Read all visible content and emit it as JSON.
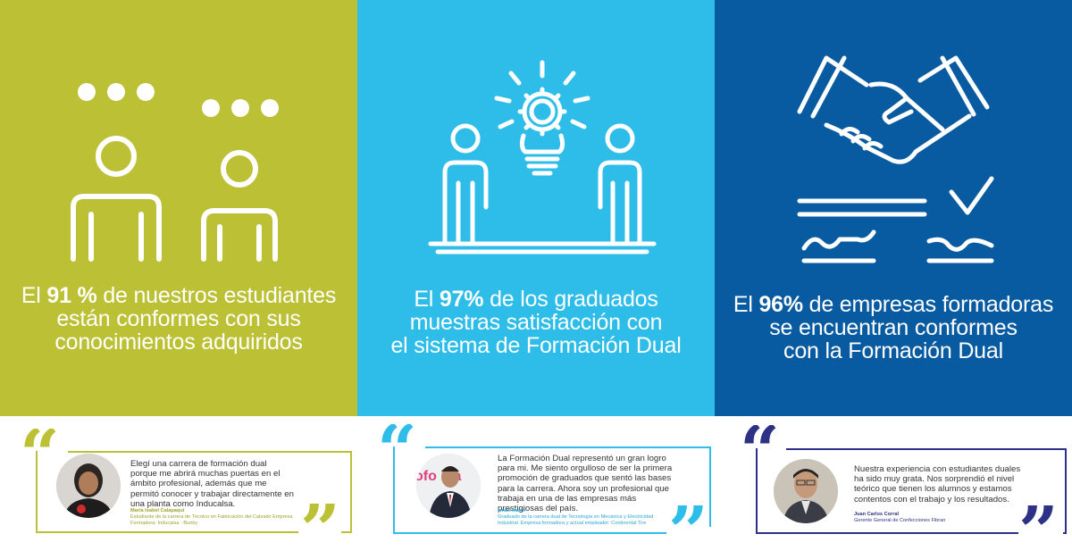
{
  "colors": {
    "green": "#bbc034",
    "light_blue": "#2ebde9",
    "dark_blue": "#095ba1",
    "navy": "#2e3286"
  },
  "stats": [
    {
      "icon": "two-people-talking-icon",
      "line1_pre": "El ",
      "line1_bold": "91 %",
      "line1_post": " de nuestros estudiantes",
      "line2": "están conformes con sus",
      "line3": "conocimientos adquiridos"
    },
    {
      "icon": "people-lightbulb-gear-icon",
      "line1_pre": "El ",
      "line1_bold": "97%",
      "line1_post": " de los graduados",
      "line2": "muestras satisfacción con",
      "line3": "el sistema de Formación Dual"
    },
    {
      "icon": "handshake-contract-icon",
      "line1_pre": "El ",
      "line1_bold": "96%",
      "line1_post": " de empresas formadoras",
      "line2": "se encuentran conformes",
      "line3": "con la Formación Dual"
    }
  ],
  "testimonials": [
    {
      "text": "Elegí una carrera de formación dual porque me abrirá muchas puertas en el ámbito profesional, además que me permitó conocer y trabajar directamente en una planta como Inducalsa.",
      "name": "María Isabel Calapaquí",
      "role": "Estudiante de la carrera de Técnico en Fabricación del Calzado Empresa Formadora: Inducalsa - Bunky"
    },
    {
      "text": "La Formación Dual representó un gran logro para mi. Me siento orgulloso de ser la primera promoción de graduados que sentó las bases para la carrera. Ahora soy un profesional que trabaja en una de las empresas más prestigiosas del país.",
      "name": "Israel Marin",
      "role": "Graduado de la carrera dual de Tecnología en Mecánica y Electricidad Industrial. Empresa formadora y actual empleador: Continental Tire",
      "photo_text": "ofo  ina"
    },
    {
      "text": "Nuestra experiencia con estudiantes duales ha sido muy grata. Nos sorprendió el nivel teórico que tienen los alumnos y estamos contentos con el trabajo y los resultados.",
      "name": "Juan Carlos Corral",
      "role": "Gerente General de Confecciones Fibran"
    }
  ]
}
